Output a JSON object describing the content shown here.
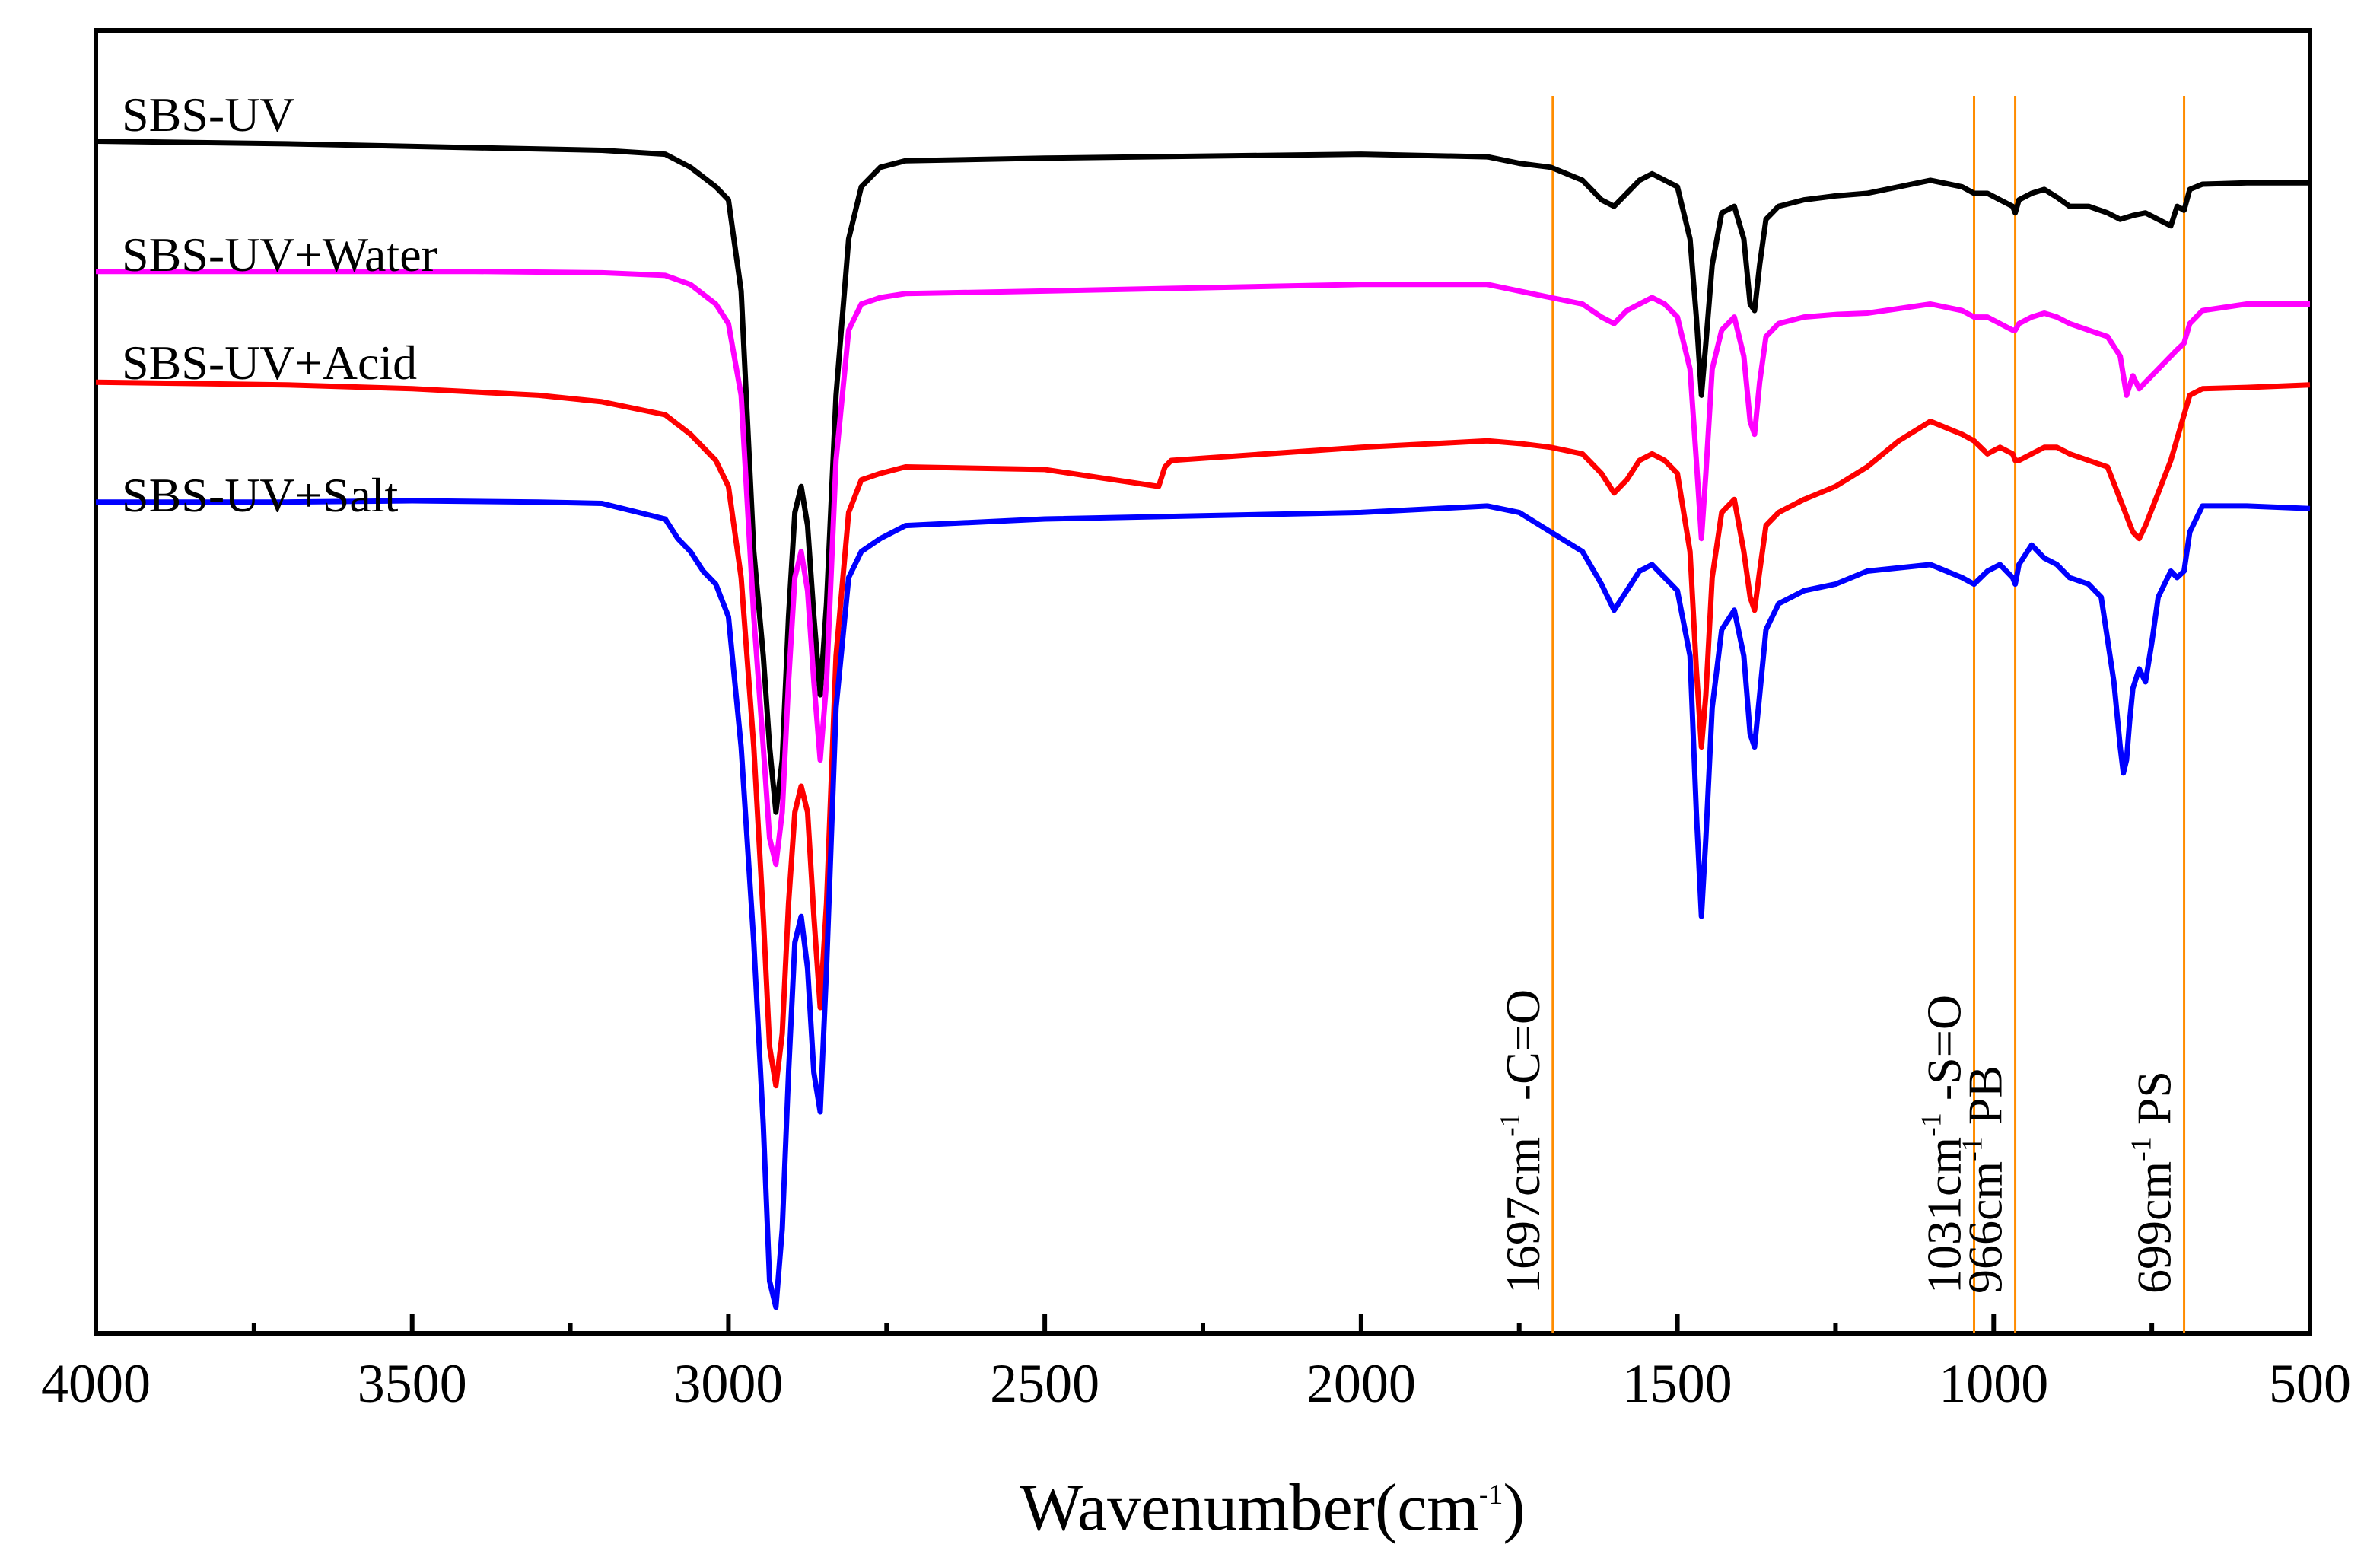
{
  "chart_data": {
    "type": "line",
    "title": "",
    "xlabel": "Wavenumber(cm",
    "xlabel_sup": "-1",
    "xlabel_close": ")",
    "ylabel": "",
    "xlim": [
      4000,
      500
    ],
    "x_reversed": true,
    "x_ticks": [
      4000,
      3500,
      3000,
      2500,
      2000,
      1500,
      1000,
      500
    ],
    "x_tick_labels": [
      "4000",
      "3500",
      "3000",
      "2500",
      "2000",
      "1500",
      "1000",
      "500"
    ],
    "x_minor_ticks": [
      3750,
      3250,
      2750,
      2250,
      1750,
      1250,
      750
    ],
    "ylim": [
      0,
      100
    ],
    "y_ticks_shown": false,
    "grid": false,
    "series": [
      {
        "name": "SBS-UV",
        "label": "SBS-UV",
        "color": "#000000",
        "x": [
          4000,
          3700,
          3400,
          3200,
          3100,
          3060,
          3020,
          3000,
          2980,
          2960,
          2945,
          2935,
          2925,
          2915,
          2905,
          2895,
          2885,
          2875,
          2865,
          2855,
          2845,
          2830,
          2810,
          2790,
          2760,
          2720,
          2500,
          2000,
          1800,
          1750,
          1700,
          1650,
          1620,
          1600,
          1580,
          1560,
          1540,
          1520,
          1500,
          1480,
          1470,
          1462,
          1455,
          1445,
          1430,
          1410,
          1395,
          1385,
          1378,
          1370,
          1360,
          1340,
          1300,
          1250,
          1200,
          1100,
          1050,
          1031,
          1010,
          990,
          970,
          966,
          960,
          940,
          920,
          900,
          880,
          850,
          820,
          800,
          780,
          760,
          740,
          720,
          710,
          699,
          690,
          670,
          600,
          500
        ],
        "y": [
          91.5,
          91.3,
          91.0,
          90.8,
          90.5,
          89.5,
          88.0,
          87.0,
          80.0,
          60.0,
          52.0,
          45.0,
          40.0,
          44.0,
          55.0,
          63.0,
          65.0,
          62.0,
          55.0,
          49.0,
          56.0,
          72.0,
          84.0,
          88.0,
          89.5,
          90.0,
          90.2,
          90.5,
          90.3,
          89.8,
          89.5,
          88.5,
          87.0,
          86.5,
          87.5,
          88.5,
          89.0,
          88.5,
          88.0,
          84.0,
          78.0,
          72.0,
          76.0,
          82.0,
          86.0,
          86.5,
          84.0,
          79.0,
          78.5,
          82.0,
          85.5,
          86.5,
          87.0,
          87.3,
          87.5,
          88.5,
          88.0,
          87.5,
          87.5,
          87.0,
          86.5,
          86.0,
          87.0,
          87.5,
          87.8,
          87.2,
          86.5,
          86.5,
          86.0,
          85.5,
          85.8,
          86.0,
          85.5,
          85.0,
          86.5,
          86.2,
          87.8,
          88.2,
          88.3,
          88.3
        ]
      },
      {
        "name": "SBS-UV+Water",
        "label": "SBS-UV+Water",
        "color": "#ff00ff",
        "x": [
          4000,
          3700,
          3400,
          3200,
          3100,
          3060,
          3020,
          3000,
          2980,
          2960,
          2945,
          2935,
          2925,
          2915,
          2905,
          2895,
          2885,
          2875,
          2865,
          2855,
          2845,
          2830,
          2810,
          2790,
          2760,
          2720,
          2500,
          2000,
          1800,
          1750,
          1700,
          1650,
          1620,
          1600,
          1580,
          1560,
          1540,
          1520,
          1500,
          1480,
          1470,
          1462,
          1455,
          1445,
          1430,
          1410,
          1395,
          1385,
          1378,
          1370,
          1360,
          1340,
          1300,
          1250,
          1200,
          1100,
          1050,
          1031,
          1010,
          990,
          970,
          966,
          960,
          940,
          920,
          900,
          880,
          850,
          820,
          800,
          790,
          780,
          770,
          760,
          740,
          720,
          710,
          699,
          690,
          670,
          600,
          500
        ],
        "y": [
          81.5,
          81.5,
          81.5,
          81.4,
          81.2,
          80.5,
          79.0,
          77.5,
          72.0,
          55.0,
          45.0,
          38.0,
          36.0,
          40.0,
          50.0,
          58.0,
          60.0,
          57.0,
          50.0,
          44.0,
          50.0,
          67.0,
          77.0,
          79.0,
          79.5,
          79.8,
          80.0,
          80.5,
          80.5,
          80.0,
          79.5,
          79.0,
          78.0,
          77.5,
          78.5,
          79.0,
          79.5,
          79.0,
          78.0,
          74.0,
          67.0,
          61.0,
          66.0,
          74.0,
          77.0,
          78.0,
          75.0,
          70.0,
          69.0,
          73.0,
          76.5,
          77.5,
          78.0,
          78.2,
          78.3,
          79.0,
          78.5,
          78.0,
          78.0,
          77.5,
          77.0,
          77.0,
          77.5,
          78.0,
          78.3,
          78.0,
          77.5,
          77.0,
          76.5,
          75.0,
          72.0,
          73.5,
          72.5,
          73.0,
          74.0,
          75.0,
          75.5,
          76.0,
          77.5,
          78.5,
          79.0,
          79.0
        ]
      },
      {
        "name": "SBS-UV+Acid",
        "label": "SBS-UV+Acid",
        "color": "#ff0000",
        "x": [
          4000,
          3700,
          3500,
          3300,
          3200,
          3100,
          3060,
          3020,
          3000,
          2980,
          2960,
          2945,
          2935,
          2925,
          2915,
          2905,
          2895,
          2885,
          2875,
          2865,
          2855,
          2845,
          2830,
          2810,
          2790,
          2760,
          2720,
          2500,
          2320,
          2310,
          2300,
          2000,
          1800,
          1750,
          1700,
          1650,
          1620,
          1600,
          1580,
          1560,
          1540,
          1520,
          1500,
          1480,
          1470,
          1462,
          1455,
          1445,
          1430,
          1410,
          1395,
          1385,
          1378,
          1370,
          1360,
          1340,
          1300,
          1250,
          1200,
          1150,
          1100,
          1050,
          1031,
          1010,
          990,
          970,
          966,
          960,
          940,
          920,
          900,
          880,
          850,
          820,
          800,
          780,
          770,
          760,
          740,
          720,
          699,
          690,
          670,
          600,
          500
        ],
        "y": [
          73.0,
          72.8,
          72.5,
          72.0,
          71.5,
          70.5,
          69.0,
          67.0,
          65.0,
          58.0,
          45.0,
          32.0,
          22.0,
          19.0,
          23.0,
          33.0,
          40.0,
          42.0,
          40.0,
          32.0,
          25.0,
          33.0,
          52.0,
          63.0,
          65.5,
          66.0,
          66.5,
          66.3,
          65.0,
          66.5,
          67.0,
          68.0,
          68.5,
          68.3,
          68.0,
          67.5,
          66.0,
          64.5,
          65.5,
          67.0,
          67.5,
          67.0,
          66.0,
          60.0,
          51.0,
          45.0,
          49.0,
          58.0,
          63.0,
          64.0,
          60.0,
          56.5,
          55.5,
          58.5,
          62.0,
          63.0,
          64.0,
          65.0,
          66.5,
          68.5,
          70.0,
          69.0,
          68.5,
          67.5,
          68.0,
          67.5,
          67.0,
          67.0,
          67.5,
          68.0,
          68.0,
          67.5,
          67.0,
          66.5,
          64.0,
          61.5,
          61.0,
          62.0,
          64.5,
          67.0,
          70.5,
          72.0,
          72.5,
          72.6,
          72.8
        ]
      },
      {
        "name": "SBS-UV+Salt",
        "label": "SBS-UV+Salt",
        "color": "#0000ff",
        "x": [
          4000,
          3700,
          3500,
          3300,
          3200,
          3100,
          3080,
          3060,
          3040,
          3020,
          3000,
          2980,
          2960,
          2945,
          2935,
          2925,
          2915,
          2905,
          2895,
          2885,
          2875,
          2865,
          2855,
          2845,
          2830,
          2810,
          2790,
          2760,
          2720,
          2500,
          2000,
          1800,
          1750,
          1700,
          1650,
          1620,
          1600,
          1580,
          1560,
          1540,
          1520,
          1500,
          1480,
          1470,
          1462,
          1455,
          1445,
          1430,
          1410,
          1395,
          1385,
          1378,
          1370,
          1360,
          1340,
          1300,
          1250,
          1200,
          1100,
          1050,
          1031,
          1010,
          990,
          970,
          966,
          960,
          940,
          920,
          900,
          880,
          850,
          830,
          810,
          800,
          795,
          790,
          785,
          780,
          770,
          760,
          750,
          740,
          720,
          710,
          699,
          690,
          670,
          600,
          500
        ],
        "y": [
          63.8,
          63.8,
          63.9,
          63.8,
          63.7,
          62.5,
          61.0,
          60.0,
          58.5,
          57.5,
          55.0,
          45.0,
          30.0,
          16.0,
          4.0,
          2.0,
          8.0,
          20.0,
          30.0,
          32.0,
          28.0,
          20.0,
          17.0,
          28.0,
          48.0,
          58.0,
          60.0,
          61.0,
          62.0,
          62.5,
          63.0,
          63.5,
          63.0,
          61.5,
          60.0,
          57.5,
          55.5,
          57.0,
          58.5,
          59.0,
          58.0,
          57.0,
          52.0,
          40.0,
          32.0,
          38.0,
          48.0,
          54.0,
          55.5,
          52.0,
          46.0,
          45.0,
          49.0,
          54.0,
          56.0,
          57.0,
          57.5,
          58.5,
          59.0,
          58.0,
          57.5,
          58.5,
          59.0,
          58.0,
          57.5,
          59.0,
          60.5,
          59.5,
          59.0,
          58.0,
          57.5,
          56.5,
          50.0,
          45.0,
          43.0,
          44.0,
          47.0,
          49.5,
          51.0,
          50.0,
          53.0,
          56.5,
          58.5,
          58.0,
          58.5,
          61.5,
          63.5,
          63.5,
          63.3
        ]
      }
    ],
    "annotations": [
      {
        "x": 1697,
        "label": "1697cm",
        "sup": "-1",
        "suffix": " -C=O",
        "color": "#ff8c00"
      },
      {
        "x": 1031,
        "label": "1031cm",
        "sup": "-1",
        "suffix": " -S=O",
        "color": "#ff8c00"
      },
      {
        "x": 966,
        "label": "966cm",
        "sup": "-1",
        "suffix": " PB",
        "color": "#ff8c00"
      },
      {
        "x": 699,
        "label": "699cm",
        "sup": "-1",
        "suffix": " PS",
        "color": "#ff8c00"
      }
    ]
  }
}
